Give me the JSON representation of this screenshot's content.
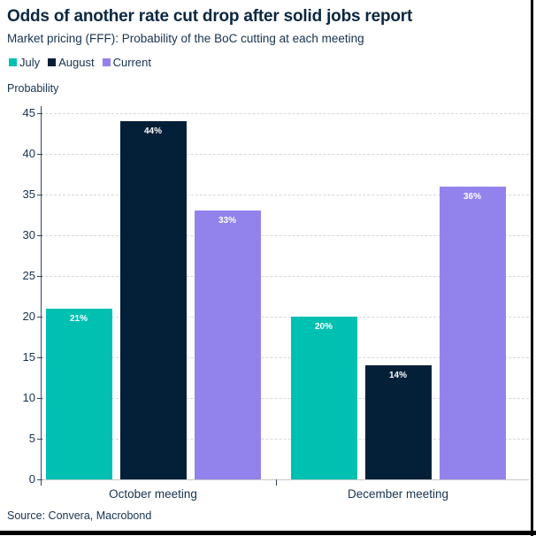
{
  "header": {
    "title": "Odds of another rate cut drop after solid jobs report",
    "subtitle": "Market pricing (FFF): Probability of the BoC cutting at each meeting"
  },
  "chart_data": {
    "type": "bar",
    "title": "Odds of another rate cut drop after solid jobs report",
    "subtitle": "Market pricing (FFF): Probability of the BoC cutting at each meeting",
    "ylabel": "Probability",
    "xlabel": "",
    "categories": [
      "October meeting",
      "December meeting"
    ],
    "series": [
      {
        "name": "July",
        "color": "#00c0b2",
        "values": [
          21,
          20
        ]
      },
      {
        "name": "August",
        "color": "#041f38",
        "values": [
          44,
          14
        ]
      },
      {
        "name": "Current",
        "color": "#9283ec",
        "values": [
          33,
          36
        ]
      }
    ],
    "bar_labels": [
      [
        "21%",
        "44%",
        "33%"
      ],
      [
        "20%",
        "14%",
        "36%"
      ]
    ],
    "ylim": [
      0,
      45
    ],
    "ytick_step": 5,
    "ytick_labels": [
      "0",
      "5",
      "10",
      "15",
      "20",
      "25",
      "30",
      "35",
      "40",
      "45"
    ],
    "grid": "horizontal-dashed",
    "legend_position": "top-left"
  },
  "footer": {
    "source": "Source: Convera, Macrobond"
  }
}
